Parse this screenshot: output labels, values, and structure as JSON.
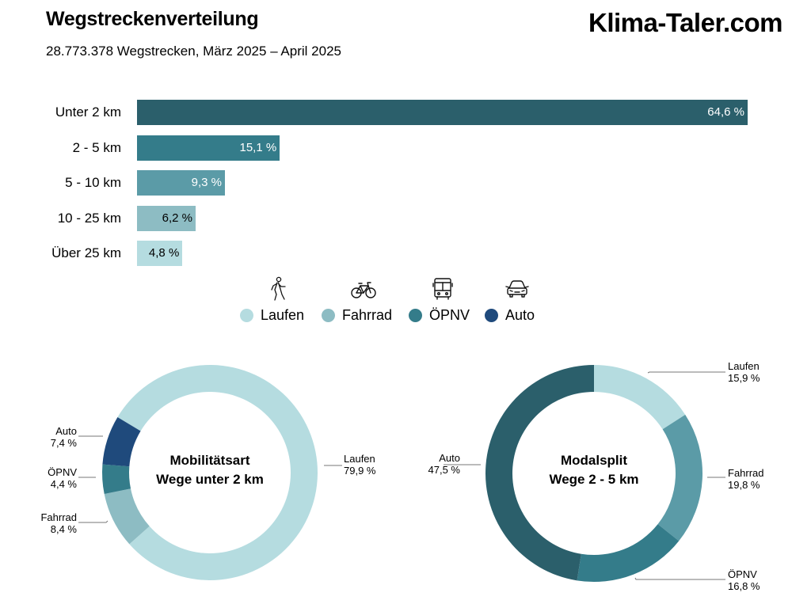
{
  "header": {
    "title": "Wegstreckenverteilung",
    "subtitle": "28.773.378 Wegstrecken, März 2025 – April 2025",
    "brand": "Klima-Taler.com"
  },
  "bars": [
    {
      "label": "Unter 2 km",
      "value": 64.6,
      "value_label": "64,6 %",
      "color": "#2b5f6b",
      "text_color": "#ffffff"
    },
    {
      "label": "2 - 5 km",
      "value": 15.1,
      "value_label": "15,1 %",
      "color": "#347c8a",
      "text_color": "#ffffff"
    },
    {
      "label": "5 - 10 km",
      "value": 9.3,
      "value_label": "9,3 %",
      "color": "#5b9ba7",
      "text_color": "#ffffff"
    },
    {
      "label": "10 - 25 km",
      "value": 6.2,
      "value_label": "6,2 %",
      "color": "#8dbcc3",
      "text_color": "#000000"
    },
    {
      "label": "Über 25 km",
      "value": 4.8,
      "value_label": "4,8 %",
      "color": "#b5dce0",
      "text_color": "#000000"
    }
  ],
  "legend": [
    {
      "label": "Laufen",
      "icon": "walking-person-icon",
      "color": "#b5dce0"
    },
    {
      "label": "Fahrrad",
      "icon": "bicycle-icon",
      "color": "#8dbcc3"
    },
    {
      "label": "ÖPNV",
      "icon": "bus-icon",
      "color": "#347c8a"
    },
    {
      "label": "Auto",
      "icon": "car-icon",
      "color": "#1f4a7c"
    }
  ],
  "donut_left": {
    "title_line1": "Mobilitätsart",
    "title_line2": "Wege unter 2 km",
    "callouts": {
      "laufen": {
        "name": "Laufen",
        "value": "79,9 %"
      },
      "fahrrad": {
        "name": "Fahrrad",
        "value": "8,4 %"
      },
      "opnv": {
        "name": "ÖPNV",
        "value": "4,4 %"
      },
      "auto": {
        "name": "Auto",
        "value": "7,4 %"
      }
    }
  },
  "donut_right": {
    "title_line1": "Modalsplit",
    "title_line2": "Wege 2 - 5 km",
    "callouts": {
      "laufen": {
        "name": "Laufen",
        "value": "15,9 %"
      },
      "fahrrad": {
        "name": "Fahrrad",
        "value": "19,8 %"
      },
      "opnv": {
        "name": "ÖPNV",
        "value": "16,8 %"
      },
      "auto": {
        "name": "Auto",
        "value": "47,5 %"
      }
    }
  },
  "chart_data": [
    {
      "type": "bar",
      "orientation": "horizontal",
      "title": "Wegstreckenverteilung",
      "subtitle": "28.773.378 Wegstrecken, März 2025 – April 2025",
      "categories": [
        "Unter 2 km",
        "2 - 5 km",
        "5 - 10 km",
        "10 - 25 km",
        "Über 25 km"
      ],
      "values": [
        64.6,
        15.1,
        9.3,
        6.2,
        4.8
      ],
      "unit": "%",
      "xlabel": "",
      "ylabel": "",
      "grid": false,
      "data_labels": true
    },
    {
      "type": "pie",
      "variant": "donut",
      "title": "Mobilitätsart Wege unter 2 km",
      "categories": [
        "Laufen",
        "Fahrrad",
        "ÖPNV",
        "Auto"
      ],
      "values": [
        79.9,
        8.4,
        4.4,
        7.4
      ],
      "colors": [
        "#b5dce0",
        "#8dbcc3",
        "#347c8a",
        "#1f4a7c"
      ],
      "unit": "%",
      "legend": [
        "Laufen",
        "Fahrrad",
        "ÖPNV",
        "Auto"
      ],
      "legend_position": "top-center (shared)"
    },
    {
      "type": "pie",
      "variant": "donut",
      "title": "Modalsplit Wege 2 - 5 km",
      "categories": [
        "Laufen",
        "Fahrrad",
        "ÖPNV",
        "Auto"
      ],
      "values": [
        15.9,
        19.8,
        16.8,
        47.5
      ],
      "colors": [
        "#b5dce0",
        "#5b9ba7",
        "#347c8a",
        "#2b5f6b"
      ],
      "unit": "%"
    }
  ]
}
